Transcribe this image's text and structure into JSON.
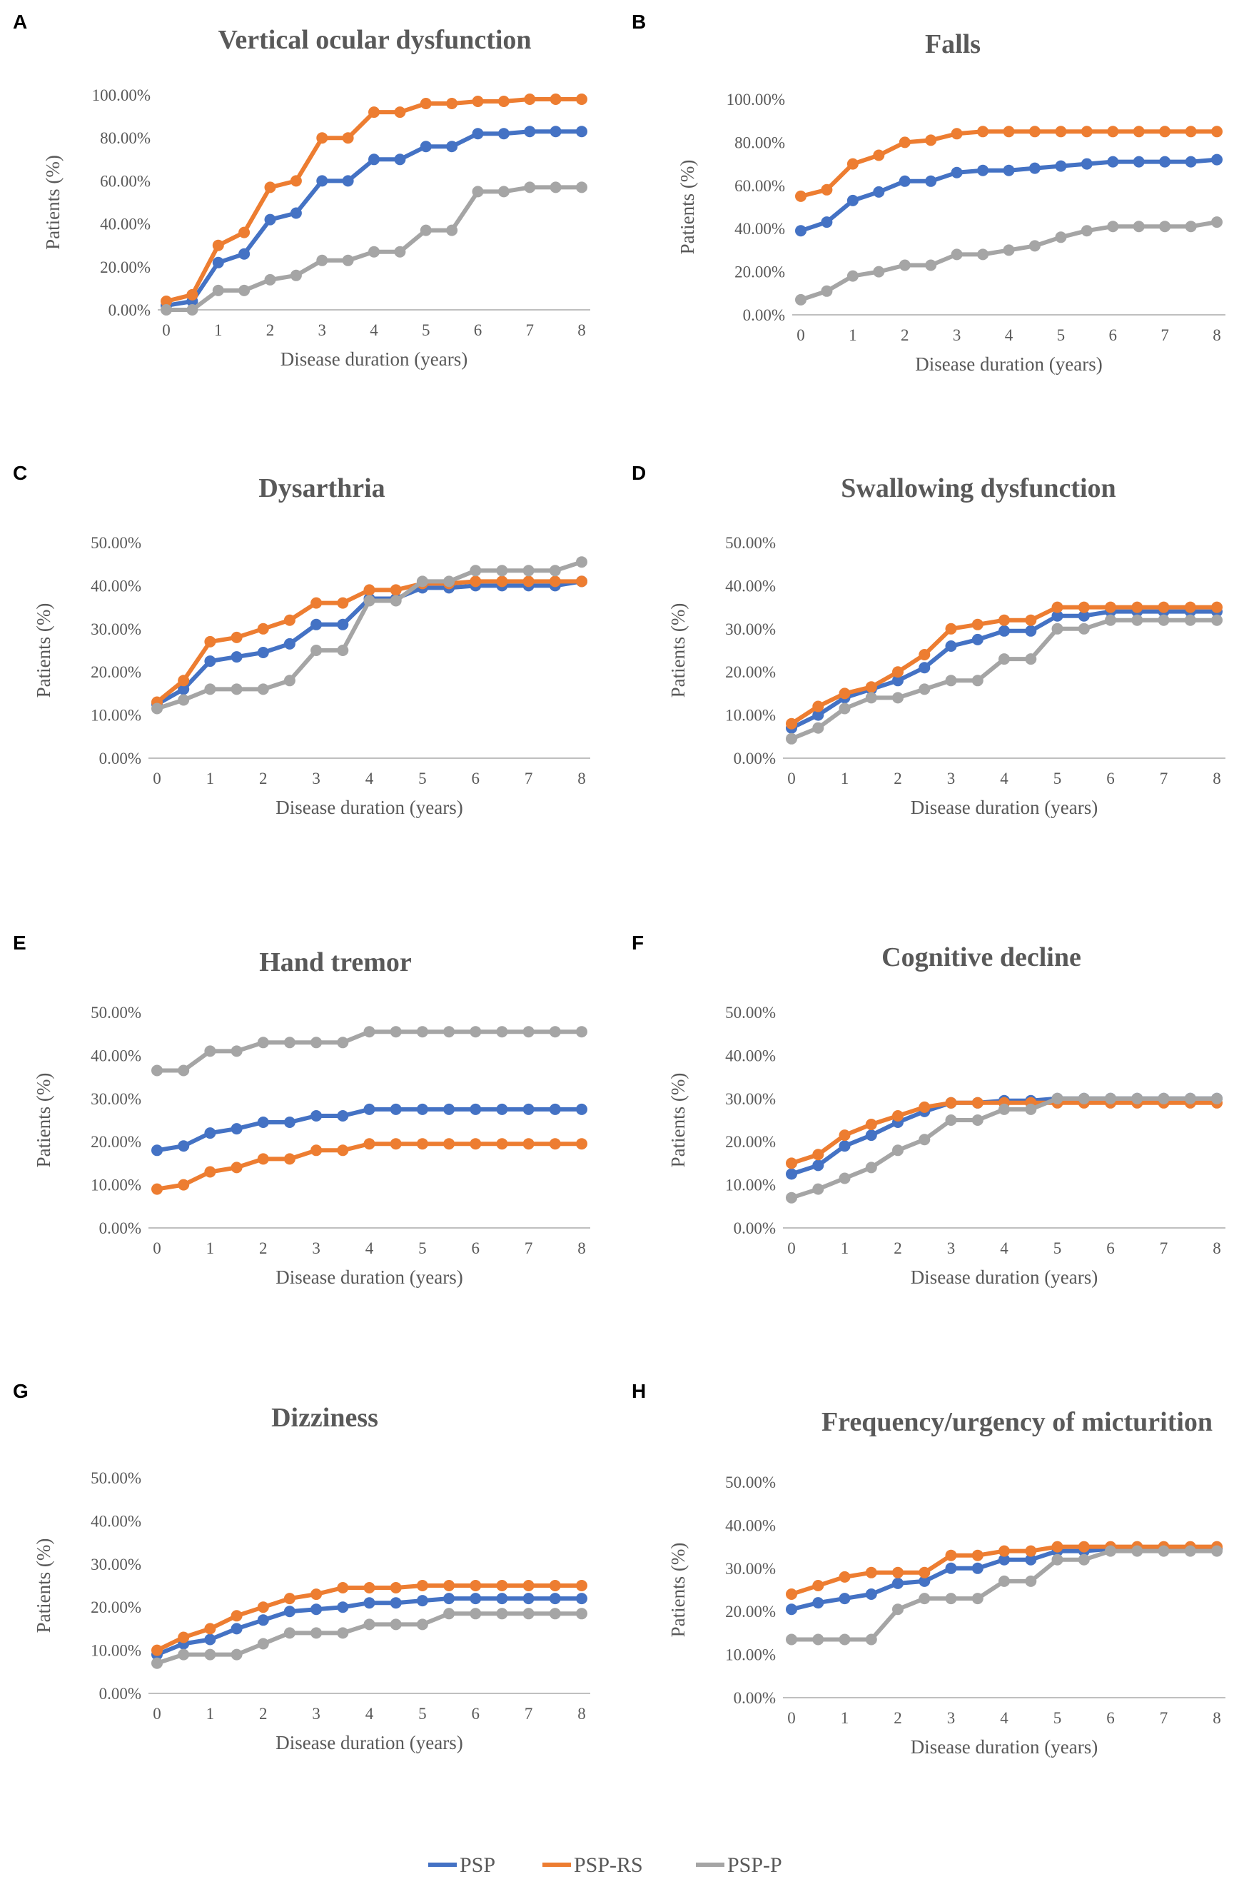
{
  "colors": {
    "PSP": "#4472c4",
    "PSP-RS": "#ed7d31",
    "PSP-P": "#a5a5a5",
    "axis": "#bfbfbf",
    "text": "#595959"
  },
  "legend": [
    {
      "name": "PSP",
      "color": "#4472c4"
    },
    {
      "name": "PSP-RS",
      "color": "#ed7d31"
    },
    {
      "name": "PSP-P",
      "color": "#a5a5a5"
    }
  ],
  "chart_data": [
    {
      "panel": "A",
      "type": "line",
      "title": "Vertical ocular dysfunction",
      "xlabel": "Disease duration (years)",
      "ylabel": "Patients (%)",
      "x": [
        0,
        0.5,
        1,
        1.5,
        2,
        2.5,
        3,
        3.5,
        4,
        4.5,
        5,
        5.5,
        6,
        6.5,
        7,
        7.5,
        8
      ],
      "xticks": [
        "0",
        "1",
        "2",
        "3",
        "4",
        "5",
        "6",
        "7",
        "8"
      ],
      "yticks": [
        "0.00%",
        "20.00%",
        "40.00%",
        "60.00%",
        "80.00%",
        "100.00%"
      ],
      "ylim": [
        0,
        100
      ],
      "series": [
        {
          "name": "PSP",
          "values": [
            2,
            4,
            22,
            26,
            42,
            45,
            60,
            60,
            70,
            70,
            76,
            76,
            82,
            82,
            83,
            83,
            83
          ]
        },
        {
          "name": "PSP-RS",
          "values": [
            4,
            7,
            30,
            36,
            57,
            60,
            80,
            80,
            92,
            92,
            96,
            96,
            97,
            97,
            98,
            98,
            98
          ]
        },
        {
          "name": "PSP-P",
          "values": [
            0,
            0,
            9,
            9,
            14,
            16,
            23,
            23,
            27,
            27,
            37,
            37,
            55,
            55,
            57,
            57,
            57
          ]
        }
      ]
    },
    {
      "panel": "B",
      "type": "line",
      "title": "Falls",
      "xlabel": "Disease duration (years)",
      "ylabel": "Patients (%)",
      "x": [
        0,
        0.5,
        1,
        1.5,
        2,
        2.5,
        3,
        3.5,
        4,
        4.5,
        5,
        5.5,
        6,
        6.5,
        7,
        7.5,
        8
      ],
      "xticks": [
        "0",
        "1",
        "2",
        "3",
        "4",
        "5",
        "6",
        "7",
        "8"
      ],
      "yticks": [
        "0.00%",
        "20.00%",
        "40.00%",
        "60.00%",
        "80.00%",
        "100.00%"
      ],
      "ylim": [
        0,
        100
      ],
      "series": [
        {
          "name": "PSP",
          "values": [
            39,
            43,
            53,
            57,
            62,
            62,
            66,
            67,
            67,
            68,
            69,
            70,
            71,
            71,
            71,
            71,
            72
          ]
        },
        {
          "name": "PSP-RS",
          "values": [
            55,
            58,
            70,
            74,
            80,
            81,
            84,
            85,
            85,
            85,
            85,
            85,
            85,
            85,
            85,
            85,
            85
          ]
        },
        {
          "name": "PSP-P",
          "values": [
            7,
            11,
            18,
            20,
            23,
            23,
            28,
            28,
            30,
            32,
            36,
            39,
            41,
            41,
            41,
            41,
            43
          ]
        }
      ]
    },
    {
      "panel": "C",
      "type": "line",
      "title": "Dysarthria",
      "xlabel": "Disease duration (years)",
      "ylabel": "Patients (%)",
      "x": [
        0,
        0.5,
        1,
        1.5,
        2,
        2.5,
        3,
        3.5,
        4,
        4.5,
        5,
        5.5,
        6,
        6.5,
        7,
        7.5,
        8
      ],
      "xticks": [
        "0",
        "1",
        "2",
        "3",
        "4",
        "5",
        "6",
        "7",
        "8"
      ],
      "yticks": [
        "0.00%",
        "10.00%",
        "20.00%",
        "30.00%",
        "40.00%",
        "50.00%"
      ],
      "ylim": [
        0,
        50
      ],
      "series": [
        {
          "name": "PSP",
          "values": [
            12.5,
            16,
            22.5,
            23.5,
            24.5,
            26.5,
            31,
            31,
            37,
            37,
            39.5,
            39.5,
            40,
            40,
            40,
            40,
            41
          ]
        },
        {
          "name": "PSP-RS",
          "values": [
            13,
            18,
            27,
            28,
            30,
            32,
            36,
            36,
            39,
            39,
            40.5,
            40.5,
            41,
            41,
            41,
            41,
            41
          ]
        },
        {
          "name": "PSP-P",
          "values": [
            11.5,
            13.5,
            16,
            16,
            16,
            18,
            25,
            25,
            36.5,
            36.5,
            41,
            41,
            43.5,
            43.5,
            43.5,
            43.5,
            45.5
          ]
        }
      ]
    },
    {
      "panel": "D",
      "type": "line",
      "title": "Swallowing dysfunction",
      "xlabel": "Disease duration (years)",
      "ylabel": "Patients (%)",
      "x": [
        0,
        0.5,
        1,
        1.5,
        2,
        2.5,
        3,
        3.5,
        4,
        4.5,
        5,
        5.5,
        6,
        6.5,
        7,
        7.5,
        8
      ],
      "xticks": [
        "0",
        "1",
        "2",
        "3",
        "4",
        "5",
        "6",
        "7",
        "8"
      ],
      "yticks": [
        "0.00%",
        "10.00%",
        "20.00%",
        "30.00%",
        "40.00%",
        "50.00%"
      ],
      "ylim": [
        0,
        50
      ],
      "series": [
        {
          "name": "PSP",
          "values": [
            7,
            10,
            14,
            16,
            18,
            21,
            26,
            27.5,
            29.5,
            29.5,
            33,
            33,
            34,
            34,
            34,
            34,
            34
          ]
        },
        {
          "name": "PSP-RS",
          "values": [
            8,
            12,
            15,
            16.5,
            20,
            24,
            30,
            31,
            32,
            32,
            35,
            35,
            35,
            35,
            35,
            35,
            35
          ]
        },
        {
          "name": "PSP-P",
          "values": [
            4.5,
            7,
            11.5,
            14,
            14,
            16,
            18,
            18,
            23,
            23,
            30,
            30,
            32,
            32,
            32,
            32,
            32
          ]
        }
      ]
    },
    {
      "panel": "E",
      "type": "line",
      "title": "Hand tremor",
      "xlabel": "Disease duration (years)",
      "ylabel": "Patients (%)",
      "x": [
        0,
        0.5,
        1,
        1.5,
        2,
        2.5,
        3,
        3.5,
        4,
        4.5,
        5,
        5.5,
        6,
        6.5,
        7,
        7.5,
        8
      ],
      "xticks": [
        "0",
        "1",
        "2",
        "3",
        "4",
        "5",
        "6",
        "7",
        "8"
      ],
      "yticks": [
        "0.00%",
        "10.00%",
        "20.00%",
        "30.00%",
        "40.00%",
        "50.00%"
      ],
      "ylim": [
        0,
        50
      ],
      "series": [
        {
          "name": "PSP",
          "values": [
            18,
            19,
            22,
            23,
            24.5,
            24.5,
            26,
            26,
            27.5,
            27.5,
            27.5,
            27.5,
            27.5,
            27.5,
            27.5,
            27.5,
            27.5
          ]
        },
        {
          "name": "PSP-RS",
          "values": [
            9,
            10,
            13,
            14,
            16,
            16,
            18,
            18,
            19.5,
            19.5,
            19.5,
            19.5,
            19.5,
            19.5,
            19.5,
            19.5,
            19.5
          ]
        },
        {
          "name": "PSP-P",
          "values": [
            36.5,
            36.5,
            41,
            41,
            43,
            43,
            43,
            43,
            45.5,
            45.5,
            45.5,
            45.5,
            45.5,
            45.5,
            45.5,
            45.5,
            45.5
          ]
        }
      ]
    },
    {
      "panel": "F",
      "type": "line",
      "title": "Cognitive decline",
      "xlabel": "Disease duration (years)",
      "ylabel": "Patients (%)",
      "x": [
        0,
        0.5,
        1,
        1.5,
        2,
        2.5,
        3,
        3.5,
        4,
        4.5,
        5,
        5.5,
        6,
        6.5,
        7,
        7.5,
        8
      ],
      "xticks": [
        "0",
        "1",
        "2",
        "3",
        "4",
        "5",
        "6",
        "7",
        "8"
      ],
      "yticks": [
        "0.00%",
        "10.00%",
        "20.00%",
        "30.00%",
        "40.00%",
        "50.00%"
      ],
      "ylim": [
        0,
        50
      ],
      "series": [
        {
          "name": "PSP",
          "values": [
            12.5,
            14.5,
            19,
            21.5,
            24.5,
            27,
            29,
            29,
            29.5,
            29.5,
            30,
            30,
            30,
            30,
            30,
            30,
            30
          ]
        },
        {
          "name": "PSP-RS",
          "values": [
            15,
            17,
            21.5,
            24,
            26,
            28,
            29,
            29,
            29,
            29,
            29,
            29,
            29,
            29,
            29,
            29,
            29
          ]
        },
        {
          "name": "PSP-P",
          "values": [
            7,
            9,
            11.5,
            14,
            18,
            20.5,
            25,
            25,
            27.5,
            27.5,
            30,
            30,
            30,
            30,
            30,
            30,
            30
          ]
        }
      ]
    },
    {
      "panel": "G",
      "type": "line",
      "title": "Dizziness",
      "xlabel": "Disease duration (years)",
      "ylabel": "Patients (%)",
      "x": [
        0,
        0.5,
        1,
        1.5,
        2,
        2.5,
        3,
        3.5,
        4,
        4.5,
        5,
        5.5,
        6,
        6.5,
        7,
        7.5,
        8
      ],
      "xticks": [
        "0",
        "1",
        "2",
        "3",
        "4",
        "5",
        "6",
        "7",
        "8"
      ],
      "yticks": [
        "0.00%",
        "10.00%",
        "20.00%",
        "30.00%",
        "40.00%",
        "50.00%"
      ],
      "ylim": [
        0,
        50
      ],
      "series": [
        {
          "name": "PSP",
          "values": [
            9,
            11.5,
            12.5,
            15,
            17,
            19,
            19.5,
            20,
            21,
            21,
            21.5,
            22,
            22,
            22,
            22,
            22,
            22
          ]
        },
        {
          "name": "PSP-RS",
          "values": [
            10,
            13,
            15,
            18,
            20,
            22,
            23,
            24.5,
            24.5,
            24.5,
            25,
            25,
            25,
            25,
            25,
            25,
            25
          ]
        },
        {
          "name": "PSP-P",
          "values": [
            7,
            9,
            9,
            9,
            11.5,
            14,
            14,
            14,
            16,
            16,
            16,
            18.5,
            18.5,
            18.5,
            18.5,
            18.5,
            18.5
          ]
        }
      ]
    },
    {
      "panel": "H",
      "type": "line",
      "title": "Frequency/urgency of micturition",
      "xlabel": "Disease duration (years)",
      "ylabel": "Patients (%)",
      "x": [
        0,
        0.5,
        1,
        1.5,
        2,
        2.5,
        3,
        3.5,
        4,
        4.5,
        5,
        5.5,
        6,
        6.5,
        7,
        7.5,
        8
      ],
      "xticks": [
        "0",
        "1",
        "2",
        "3",
        "4",
        "5",
        "6",
        "7",
        "8"
      ],
      "yticks": [
        "0.00%",
        "10.00%",
        "20.00%",
        "30.00%",
        "40.00%",
        "50.00%"
      ],
      "ylim": [
        0,
        50
      ],
      "series": [
        {
          "name": "PSP",
          "values": [
            20.5,
            22,
            23,
            24,
            26.5,
            27,
            30,
            30,
            32,
            32,
            34,
            34,
            34.5,
            34.5,
            34.5,
            34.5,
            34.5
          ]
        },
        {
          "name": "PSP-RS",
          "values": [
            24,
            26,
            28,
            29,
            29,
            29,
            33,
            33,
            34,
            34,
            35,
            35,
            35,
            35,
            35,
            35,
            35
          ]
        },
        {
          "name": "PSP-P",
          "values": [
            13.5,
            13.5,
            13.5,
            13.5,
            20.5,
            23,
            23,
            23,
            27,
            27,
            32,
            32,
            34,
            34,
            34,
            34,
            34
          ]
        }
      ]
    }
  ]
}
